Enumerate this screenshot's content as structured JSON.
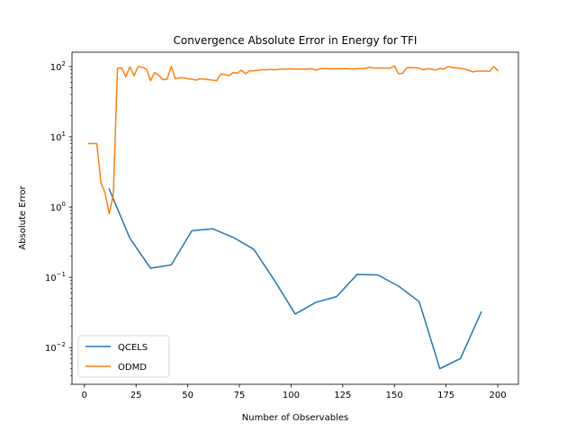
{
  "chart_data": {
    "type": "line",
    "title": "Convergence Absolute Error in Energy for TFI",
    "xlabel": "Number of Observables",
    "ylabel": "Absolute Error",
    "xlim": [
      -6,
      210
    ],
    "ylim": [
      0.003,
      160
    ],
    "yscale": "log",
    "xticks": [
      0,
      25,
      50,
      75,
      100,
      125,
      150,
      175,
      200
    ],
    "yticks": [
      {
        "value": 0.01,
        "base": "10",
        "exp": "−2"
      },
      {
        "value": 0.1,
        "base": "10",
        "exp": "−1"
      },
      {
        "value": 1,
        "base": "10",
        "exp": "0"
      },
      {
        "value": 10,
        "base": "10",
        "exp": "1"
      },
      {
        "value": 100,
        "base": "10",
        "exp": "2"
      }
    ],
    "grid": false,
    "legend": "lower-left",
    "series": [
      {
        "name": "QCELS",
        "color": "#1f77b4",
        "x": [
          12,
          22,
          32,
          42,
          52,
          62,
          72,
          82,
          92,
          102,
          112,
          122,
          132,
          142,
          152,
          162,
          172,
          182,
          192
        ],
        "y": [
          1.8,
          0.36,
          0.135,
          0.15,
          0.46,
          0.49,
          0.37,
          0.25,
          0.09,
          0.03,
          0.044,
          0.053,
          0.11,
          0.108,
          0.075,
          0.045,
          0.005,
          0.007,
          0.032
        ]
      },
      {
        "name": "ODMD",
        "color": "#ff7f0e",
        "x": [
          2,
          4,
          6,
          8,
          10,
          12,
          14,
          16,
          18,
          20,
          22,
          24,
          26,
          28,
          30,
          32,
          34,
          36,
          38,
          40,
          42,
          44,
          46,
          48,
          50,
          52,
          54,
          56,
          58,
          60,
          62,
          64,
          66,
          68,
          70,
          72,
          74,
          76,
          78,
          80,
          82,
          84,
          86,
          88,
          90,
          92,
          94,
          96,
          98,
          100,
          102,
          104,
          106,
          108,
          110,
          112,
          114,
          116,
          118,
          120,
          122,
          124,
          126,
          128,
          130,
          132,
          134,
          136,
          138,
          140,
          142,
          144,
          146,
          148,
          150,
          152,
          154,
          156,
          158,
          160,
          162,
          164,
          166,
          168,
          170,
          172,
          174,
          176,
          178,
          180,
          182,
          184,
          186,
          188,
          190,
          192,
          194,
          196,
          198,
          200
        ],
        "y": [
          8.0,
          8.0,
          8.0,
          2.2,
          1.6,
          0.8,
          1.5,
          95,
          96,
          72,
          99,
          74,
          100,
          98,
          92,
          63,
          82,
          75,
          65,
          66,
          100,
          67,
          69,
          69,
          67,
          66,
          64,
          67,
          66,
          65,
          64,
          63,
          78,
          77,
          74,
          82,
          80,
          89,
          79,
          87,
          87,
          88,
          90,
          90,
          91,
          90,
          91,
          92,
          92,
          93,
          92,
          92,
          92,
          92,
          93,
          89,
          93,
          94,
          93,
          93,
          93,
          93,
          93,
          93,
          92,
          93,
          93,
          94,
          98,
          95,
          95,
          95,
          95,
          95,
          102,
          79,
          80,
          96,
          97,
          96,
          95,
          90,
          93,
          92,
          89,
          94,
          92,
          100,
          97,
          96,
          94,
          92,
          88,
          84,
          86,
          86,
          86,
          85,
          100,
          88
        ]
      }
    ]
  }
}
